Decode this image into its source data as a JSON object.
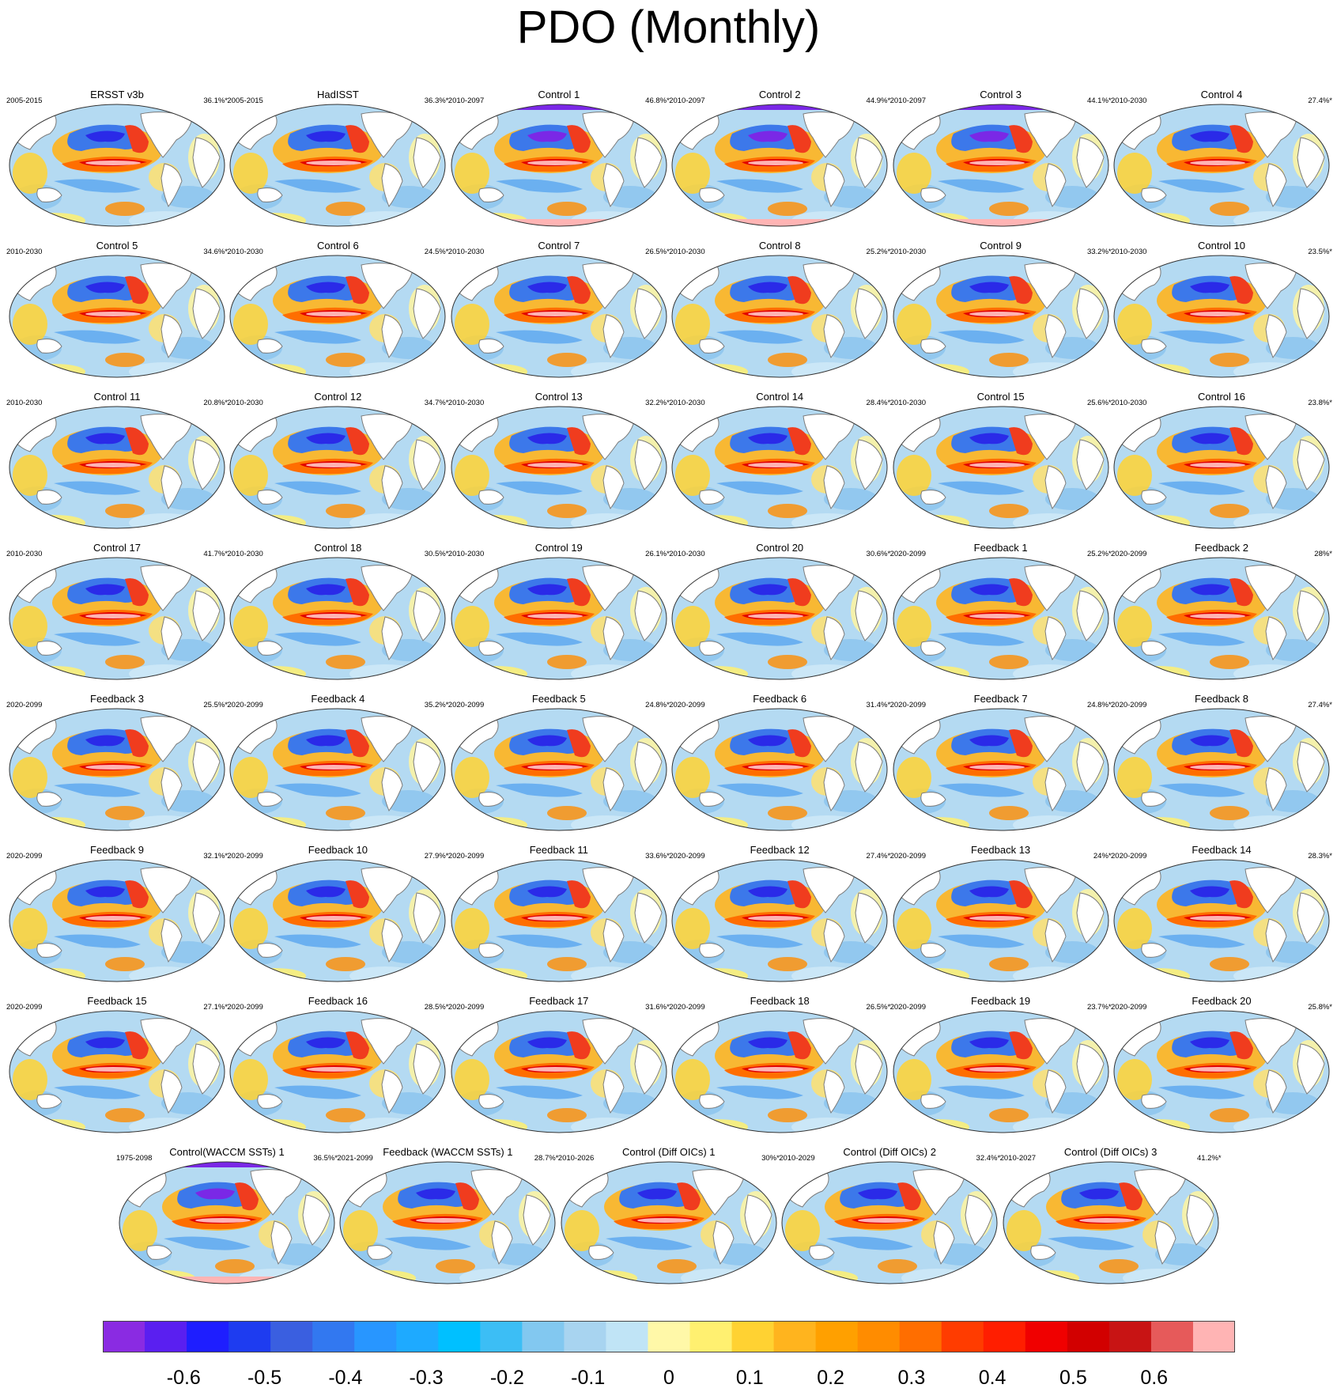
{
  "title": "PDO (Monthly)",
  "chart_data": {
    "type": "heatmap",
    "title": "PDO (Monthly)",
    "panels": [
      {
        "title": "ERSST v3b",
        "years": "2005-2015",
        "pct": "36.1%*"
      },
      {
        "title": "HadISST",
        "years": "2005-2015",
        "pct": "36.3%*"
      },
      {
        "title": "Control 1",
        "years": "2010-2097",
        "pct": "46.8%*"
      },
      {
        "title": "Control 2",
        "years": "2010-2097",
        "pct": "44.9%*"
      },
      {
        "title": "Control 3",
        "years": "2010-2097",
        "pct": "44.1%*"
      },
      {
        "title": "Control 4",
        "years": "2010-2030",
        "pct": "27.4%*"
      },
      {
        "title": "Control 5",
        "years": "2010-2030",
        "pct": "34.6%*"
      },
      {
        "title": "Control 6",
        "years": "2010-2030",
        "pct": "24.5%*"
      },
      {
        "title": "Control 7",
        "years": "2010-2030",
        "pct": "26.5%*"
      },
      {
        "title": "Control 8",
        "years": "2010-2030",
        "pct": "25.2%*"
      },
      {
        "title": "Control 9",
        "years": "2010-2030",
        "pct": "33.2%*"
      },
      {
        "title": "Control 10",
        "years": "2010-2030",
        "pct": "23.5%*"
      },
      {
        "title": "Control 11",
        "years": "2010-2030",
        "pct": "20.8%*"
      },
      {
        "title": "Control 12",
        "years": "2010-2030",
        "pct": "34.7%*"
      },
      {
        "title": "Control 13",
        "years": "2010-2030",
        "pct": "32.2%*"
      },
      {
        "title": "Control 14",
        "years": "2010-2030",
        "pct": "28.4%*"
      },
      {
        "title": "Control 15",
        "years": "2010-2030",
        "pct": "25.6%*"
      },
      {
        "title": "Control 16",
        "years": "2010-2030",
        "pct": "23.8%*"
      },
      {
        "title": "Control 17",
        "years": "2010-2030",
        "pct": "41.7%*"
      },
      {
        "title": "Control 18",
        "years": "2010-2030",
        "pct": "30.5%*"
      },
      {
        "title": "Control 19",
        "years": "2010-2030",
        "pct": "26.1%*"
      },
      {
        "title": "Control 20",
        "years": "2010-2030",
        "pct": "30.6%*"
      },
      {
        "title": "Feedback 1",
        "years": "2020-2099",
        "pct": "25.2%*"
      },
      {
        "title": "Feedback 2",
        "years": "2020-2099",
        "pct": "28%*"
      },
      {
        "title": "Feedback 3",
        "years": "2020-2099",
        "pct": "25.5%*"
      },
      {
        "title": "Feedback 4",
        "years": "2020-2099",
        "pct": "35.2%*"
      },
      {
        "title": "Feedback 5",
        "years": "2020-2099",
        "pct": "24.8%*"
      },
      {
        "title": "Feedback 6",
        "years": "2020-2099",
        "pct": "31.4%*"
      },
      {
        "title": "Feedback 7",
        "years": "2020-2099",
        "pct": "24.8%*"
      },
      {
        "title": "Feedback 8",
        "years": "2020-2099",
        "pct": "27.4%*"
      },
      {
        "title": "Feedback 9",
        "years": "2020-2099",
        "pct": "32.1%*"
      },
      {
        "title": "Feedback 10",
        "years": "2020-2099",
        "pct": "27.9%*"
      },
      {
        "title": "Feedback 11",
        "years": "2020-2099",
        "pct": "33.6%*"
      },
      {
        "title": "Feedback 12",
        "years": "2020-2099",
        "pct": "27.4%*"
      },
      {
        "title": "Feedback 13",
        "years": "2020-2099",
        "pct": "24%*"
      },
      {
        "title": "Feedback 14",
        "years": "2020-2099",
        "pct": "28.3%*"
      },
      {
        "title": "Feedback 15",
        "years": "2020-2099",
        "pct": "27.1%*"
      },
      {
        "title": "Feedback 16",
        "years": "2020-2099",
        "pct": "28.5%*"
      },
      {
        "title": "Feedback 17",
        "years": "2020-2099",
        "pct": "31.6%*"
      },
      {
        "title": "Feedback 18",
        "years": "2020-2099",
        "pct": "26.5%*"
      },
      {
        "title": "Feedback 19",
        "years": "2020-2099",
        "pct": "23.7%*"
      },
      {
        "title": "Feedback 20",
        "years": "2020-2099",
        "pct": "25.8%*"
      },
      {
        "title": "Control(WACCM SSTs) 1",
        "years": "1975-2098",
        "pct": "36.5%*"
      },
      {
        "title": "Feedback (WACCM SSTs) 1",
        "years": "2021-2099",
        "pct": "28.7%*"
      },
      {
        "title": "Control (Diff OICs) 1",
        "years": "2010-2026",
        "pct": "30%*"
      },
      {
        "title": "Control (Diff OICs) 2",
        "years": "2010-2029",
        "pct": "32.4%*"
      },
      {
        "title": "Control (Diff OICs) 3",
        "years": "2010-2027",
        "pct": "41.2%*"
      }
    ],
    "colorbar": {
      "tick_labels": [
        "-0.6",
        "-0.5",
        "-0.4",
        "-0.3",
        "-0.2",
        "-0.1",
        "0",
        "0.1",
        "0.2",
        "0.3",
        "0.4",
        "0.5",
        "0.6"
      ],
      "tick_values": [
        -0.6,
        -0.5,
        -0.4,
        -0.3,
        -0.2,
        -0.1,
        0,
        0.1,
        0.2,
        0.3,
        0.4,
        0.5,
        0.6
      ],
      "range": [
        -0.7,
        0.7
      ],
      "colors": [
        "#8a2be2",
        "#5a1ff0",
        "#1e1eff",
        "#1e3cf0",
        "#3a5fe0",
        "#3278f0",
        "#2896ff",
        "#1eaaff",
        "#00c0ff",
        "#3cbef5",
        "#82c8f0",
        "#a8d4f0",
        "#c0e4f6",
        "#fff8a8",
        "#fff070",
        "#ffd232",
        "#ffb41e",
        "#ffa000",
        "#ff8c00",
        "#ff6e00",
        "#ff3c00",
        "#ff1e00",
        "#f00000",
        "#d20000",
        "#c81414",
        "#e65a5a",
        "#ffb4b4"
      ]
    }
  }
}
